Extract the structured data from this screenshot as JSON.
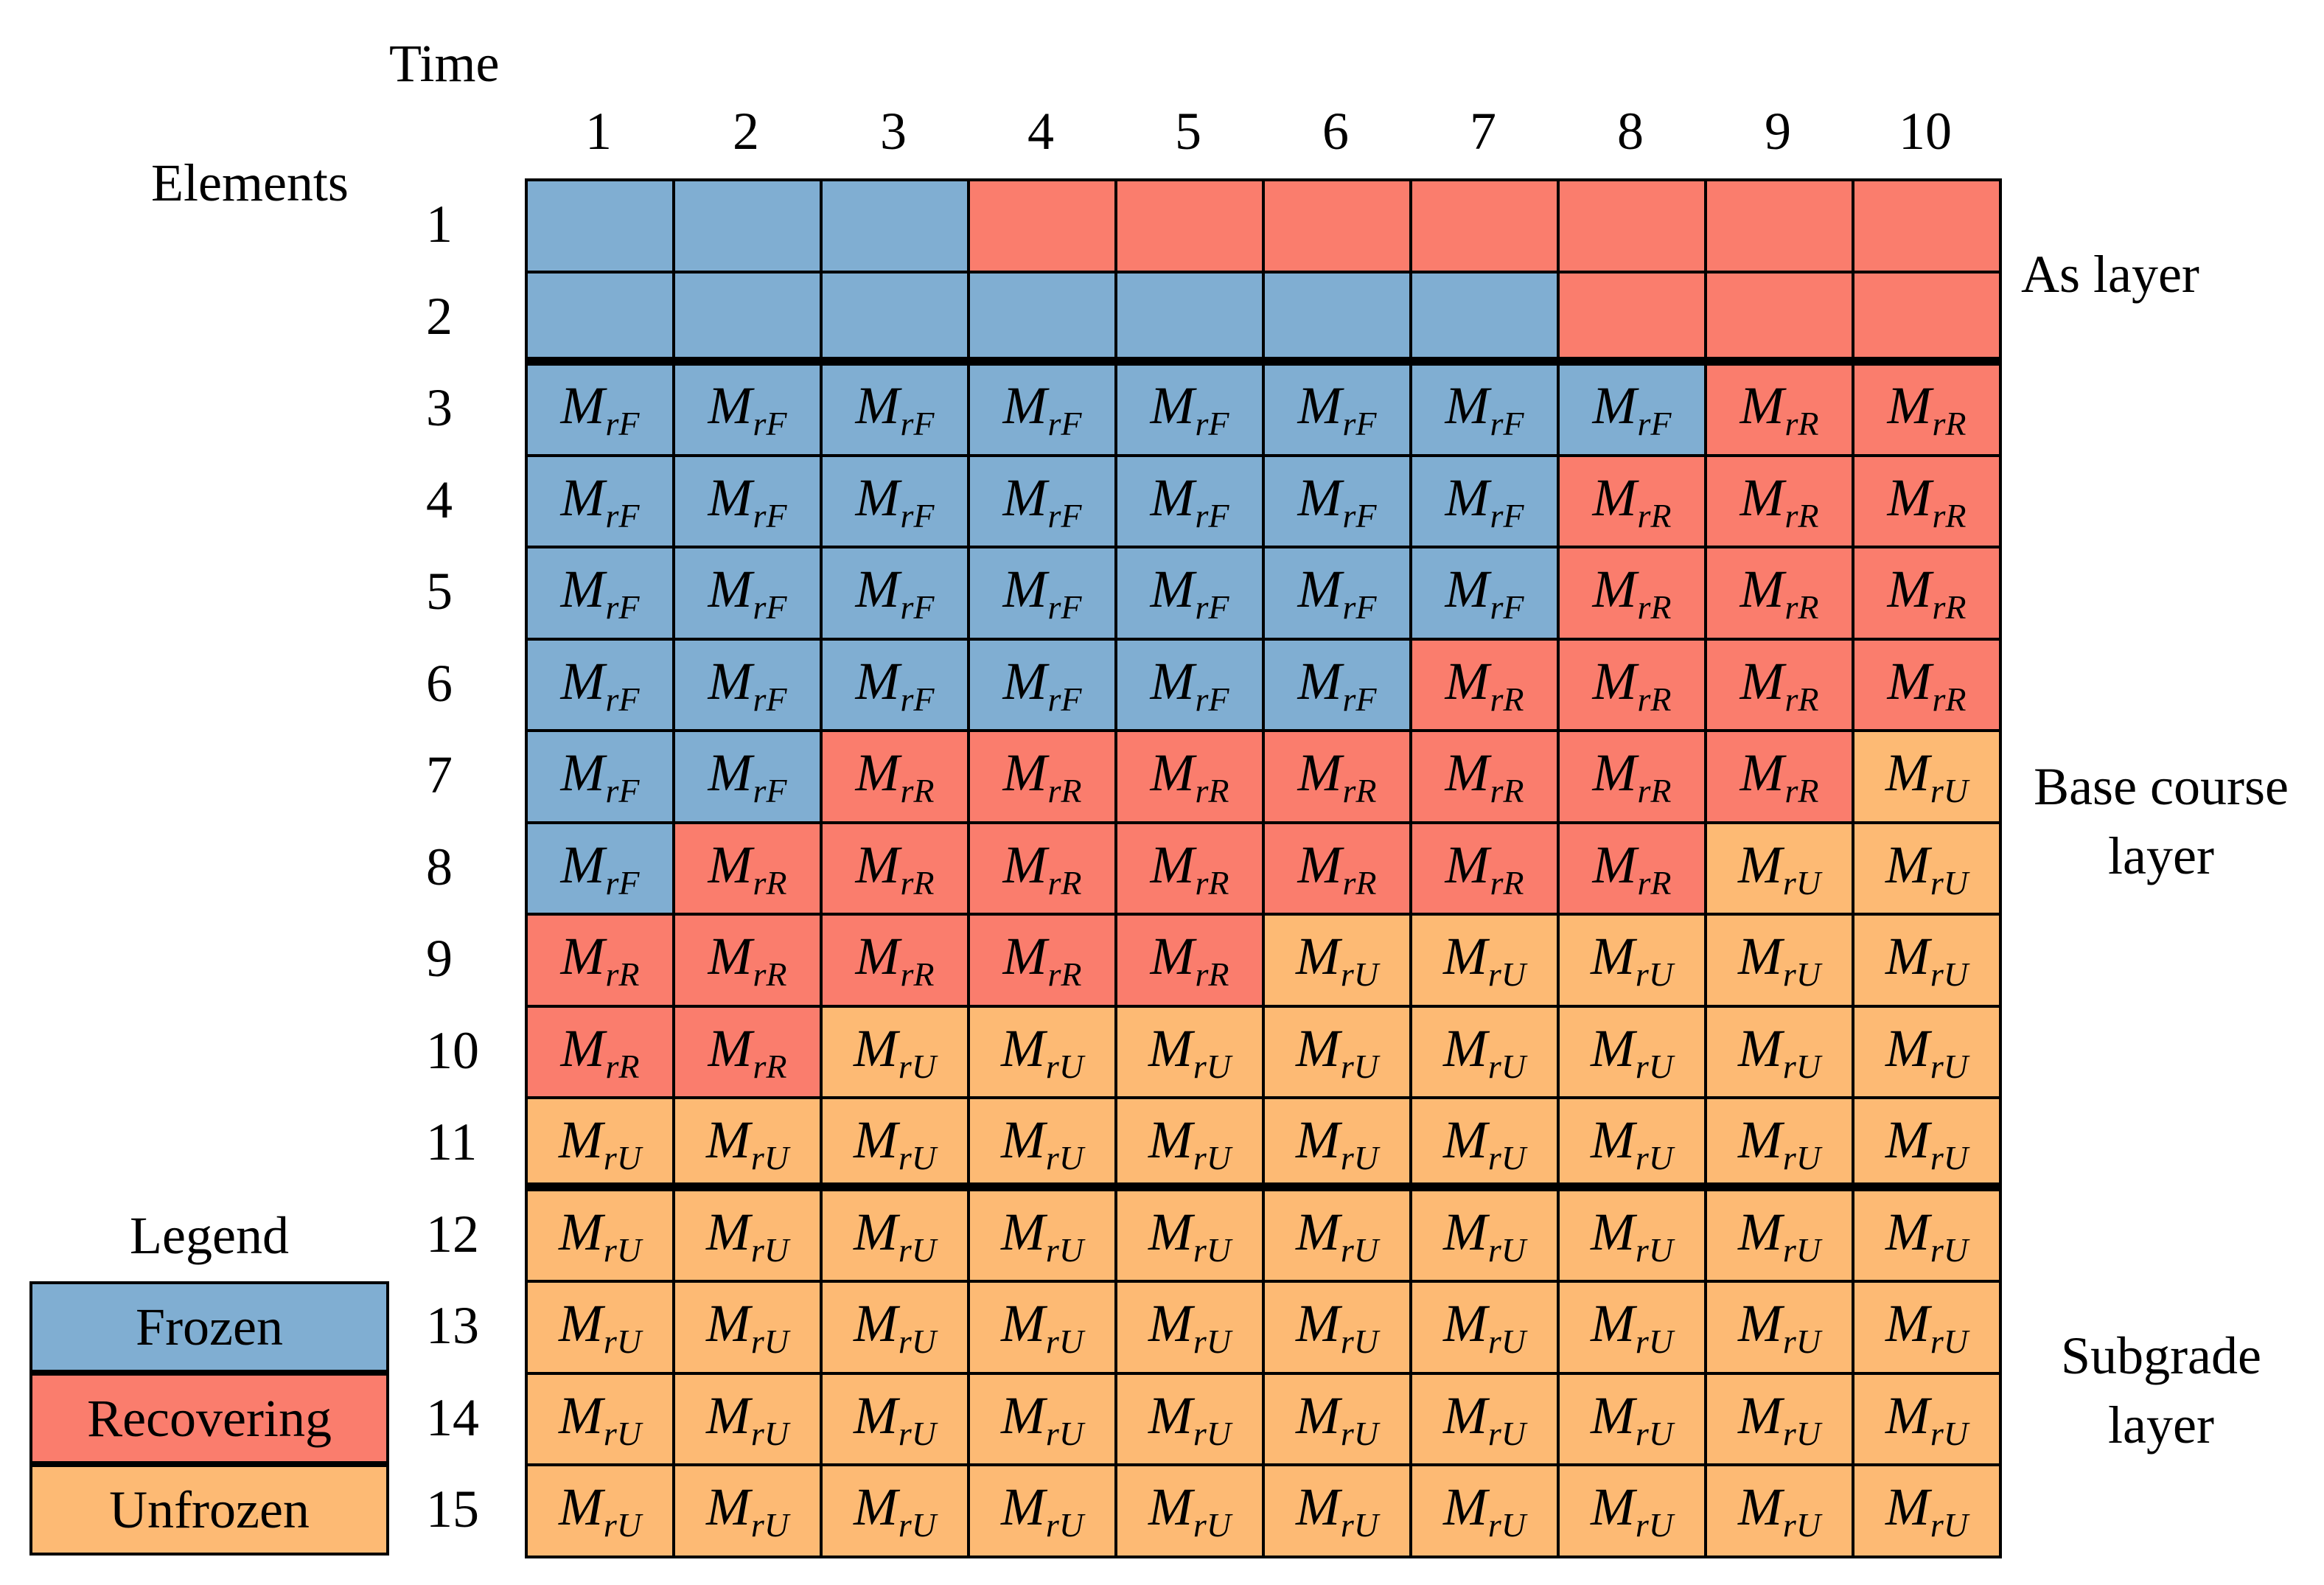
{
  "axis": {
    "time_label": "Time",
    "elements_label": "Elements"
  },
  "time_steps": [
    "1",
    "2",
    "3",
    "4",
    "5",
    "6",
    "7",
    "8",
    "9",
    "10"
  ],
  "elements": [
    "1",
    "2",
    "3",
    "4",
    "5",
    "6",
    "7",
    "8",
    "9",
    "10",
    "11",
    "12",
    "13",
    "14",
    "15"
  ],
  "layers": {
    "as": "As layer",
    "base_line1": "Base course",
    "base_line2": "layer",
    "subgrade_line1": "Subgrade",
    "subgrade_line2": "layer"
  },
  "legend": {
    "title": "Legend",
    "frozen": "Frozen",
    "recovering": "Recovering",
    "unfrozen": "Unfrozen"
  },
  "colors": {
    "F": "#80AED2",
    "R": "#FA7D6D",
    "U": "#FDBA74"
  },
  "symbols": {
    "F": {
      "base": "M",
      "sub": "rF"
    },
    "R": {
      "base": "M",
      "sub": "rR"
    },
    "U": {
      "base": "M",
      "sub": "rU"
    }
  },
  "state_grid": [
    "FFFRRRRRRR",
    "FFFFFFFRRR",
    "FFFFFFFFRR",
    "FFFFFFFRRR",
    "FFFFFFFRRR",
    "FFFFFFRRRR",
    "FFRRRRRRRU",
    "FRRRRRRRUU",
    "RRRRRUUUUU",
    "RRUUUUUUUU",
    "UUUUUUUUUU",
    "UUUUUUUUUU",
    "UUUUUUUUUU",
    "UUUUUUUUUU",
    "UUUUUUUUUU"
  ],
  "rows_without_symbols": [
    "1",
    "2"
  ]
}
